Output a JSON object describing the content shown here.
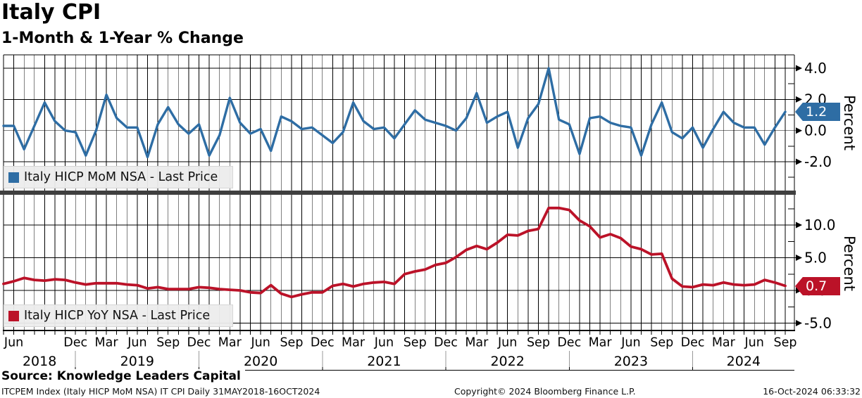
{
  "header": {
    "title": "Italy CPI",
    "subtitle": "1-Month & 1-Year % Change"
  },
  "top_panel": {
    "legend_label": "Italy HICP MoM NSA - Last Price",
    "last_price": "1.2",
    "axis_title": "Percent",
    "ytick_labels": [
      "4.0",
      "2.0",
      "0.0",
      "-2.0"
    ]
  },
  "bottom_panel": {
    "legend_label": "Italy HICP YoY NSA - Last Price",
    "last_price": "0.7",
    "axis_title": "Percent",
    "ytick_labels": [
      "10.0",
      "5.0",
      "0.0",
      "-5.0"
    ]
  },
  "source_line": "Source: Knowledge Leaders Capital",
  "footer": {
    "left": "ITCPEM Index (Italy HICP MoM NSA) IT CPI  Daily 31MAY2018-16OCT2024",
    "center": "Copyright© 2024 Bloomberg Finance L.P.",
    "right": "16-Oct-2024 06:33:32"
  },
  "colors": {
    "mom_blue": "#2e6da4",
    "yoy_red": "#bb1228",
    "grid": "#000000",
    "separator": "#3f3f3f",
    "legend_bg": "#ececec",
    "year_divider": "#999999"
  },
  "chart_data": {
    "type": "line",
    "title": "Italy CPI — 1-Month & 1-Year % Change",
    "x_months": [
      "2018-05",
      "2018-06",
      "2018-07",
      "2018-08",
      "2018-09",
      "2018-10",
      "2018-11",
      "2018-12",
      "2019-01",
      "2019-02",
      "2019-03",
      "2019-04",
      "2019-05",
      "2019-06",
      "2019-07",
      "2019-08",
      "2019-09",
      "2019-10",
      "2019-11",
      "2019-12",
      "2020-01",
      "2020-02",
      "2020-03",
      "2020-04",
      "2020-05",
      "2020-06",
      "2020-07",
      "2020-08",
      "2020-09",
      "2020-10",
      "2020-11",
      "2020-12",
      "2021-01",
      "2021-02",
      "2021-03",
      "2021-04",
      "2021-05",
      "2021-06",
      "2021-07",
      "2021-08",
      "2021-09",
      "2021-10",
      "2021-11",
      "2021-12",
      "2022-01",
      "2022-02",
      "2022-03",
      "2022-04",
      "2022-05",
      "2022-06",
      "2022-07",
      "2022-08",
      "2022-09",
      "2022-10",
      "2022-11",
      "2022-12",
      "2023-01",
      "2023-02",
      "2023-03",
      "2023-04",
      "2023-05",
      "2023-06",
      "2023-07",
      "2023-08",
      "2023-09",
      "2023-10",
      "2023-11",
      "2023-12",
      "2024-01",
      "2024-02",
      "2024-03",
      "2024-04",
      "2024-05",
      "2024-06",
      "2024-07",
      "2024-08",
      "2024-09"
    ],
    "series": [
      {
        "name": "Italy HICP MoM NSA - Last Price",
        "panel": "top",
        "color_key": "mom_blue",
        "last_price": 1.2,
        "values": [
          0.3,
          0.3,
          -1.2,
          0.3,
          1.8,
          0.6,
          0.0,
          -0.1,
          -1.6,
          0.0,
          2.3,
          0.8,
          0.2,
          0.2,
          -1.7,
          0.4,
          1.5,
          0.4,
          -0.2,
          0.4,
          -1.6,
          -0.3,
          2.1,
          0.5,
          -0.2,
          0.1,
          -1.3,
          0.9,
          0.6,
          0.1,
          0.2,
          -0.3,
          -0.8,
          -0.1,
          1.8,
          0.6,
          0.1,
          0.2,
          -0.5,
          0.4,
          1.3,
          0.7,
          0.5,
          0.3,
          0.0,
          0.8,
          2.4,
          0.5,
          0.9,
          1.2,
          -1.1,
          0.8,
          1.7,
          4.0,
          0.7,
          0.4,
          -1.5,
          0.8,
          0.9,
          0.5,
          0.3,
          0.2,
          -1.6,
          0.4,
          1.8,
          -0.1,
          -0.5,
          0.2,
          -1.1,
          0.1,
          1.2,
          0.5,
          0.2,
          0.2,
          -0.9,
          0.2,
          1.2
        ]
      },
      {
        "name": "Italy HICP YoY NSA - Last Price",
        "panel": "bottom",
        "color_key": "yoy_red",
        "last_price": 0.7,
        "values": [
          1.0,
          1.4,
          1.9,
          1.6,
          1.5,
          1.7,
          1.6,
          1.2,
          0.9,
          1.1,
          1.1,
          1.1,
          0.9,
          0.8,
          0.3,
          0.5,
          0.2,
          0.2,
          0.2,
          0.5,
          0.4,
          0.2,
          0.1,
          0.0,
          -0.3,
          -0.4,
          0.8,
          -0.5,
          -1.0,
          -0.6,
          -0.3,
          -0.3,
          0.7,
          1.0,
          0.6,
          1.0,
          1.2,
          1.3,
          1.0,
          2.5,
          2.9,
          3.2,
          3.9,
          4.2,
          5.1,
          6.2,
          6.8,
          6.3,
          7.3,
          8.5,
          8.4,
          9.1,
          9.4,
          12.6,
          12.6,
          12.3,
          10.7,
          9.8,
          8.1,
          8.6,
          8.0,
          6.7,
          6.3,
          5.5,
          5.6,
          1.8,
          0.6,
          0.5,
          0.9,
          0.8,
          1.2,
          0.9,
          0.8,
          0.9,
          1.6,
          1.2,
          0.7
        ]
      }
    ],
    "top_axis": {
      "ticks": [
        4.0,
        2.0,
        0.0,
        -2.0
      ],
      "minor_ticks": [
        3.0,
        1.0,
        -1.0,
        -3.0
      ],
      "ylim": [
        -3.85,
        4.86
      ],
      "label": "Percent"
    },
    "bottom_axis": {
      "ticks": [
        10.0,
        5.0,
        0.0,
        -5.0
      ],
      "minor_ticks": [
        12.5,
        7.5,
        2.5,
        -2.5
      ],
      "ylim": [
        -6.1,
        14.6
      ],
      "label": "Percent"
    },
    "x_tick_labels": [
      {
        "label": "Jun",
        "k": 1
      },
      {
        "label": "Dec",
        "k": 7
      },
      {
        "label": "Mar",
        "k": 10
      },
      {
        "label": "Jun",
        "k": 13
      },
      {
        "label": "Sep",
        "k": 16
      },
      {
        "label": "Dec",
        "k": 19
      },
      {
        "label": "Mar",
        "k": 22
      },
      {
        "label": "Jun",
        "k": 25
      },
      {
        "label": "Sep",
        "k": 28
      },
      {
        "label": "Dec",
        "k": 31
      },
      {
        "label": "Mar",
        "k": 34
      },
      {
        "label": "Jun",
        "k": 37
      },
      {
        "label": "Sep",
        "k": 40
      },
      {
        "label": "Dec",
        "k": 43
      },
      {
        "label": "Mar",
        "k": 46
      },
      {
        "label": "Jun",
        "k": 49
      },
      {
        "label": "Sep",
        "k": 52
      },
      {
        "label": "Dec",
        "k": 55
      },
      {
        "label": "Mar",
        "k": 58
      },
      {
        "label": "Jun",
        "k": 61
      },
      {
        "label": "Sep",
        "k": 64
      },
      {
        "label": "Dec",
        "k": 67
      },
      {
        "label": "Mar",
        "k": 70
      },
      {
        "label": "Jun",
        "k": 73
      },
      {
        "label": "Sep",
        "k": 76
      }
    ],
    "years": [
      {
        "label": "2018"
      },
      {
        "label": "2019"
      },
      {
        "label": "2020"
      },
      {
        "label": "2021"
      },
      {
        "label": "2022"
      },
      {
        "label": "2023"
      },
      {
        "label": "2024"
      }
    ],
    "grid": true,
    "legend_position": "inside-left"
  }
}
